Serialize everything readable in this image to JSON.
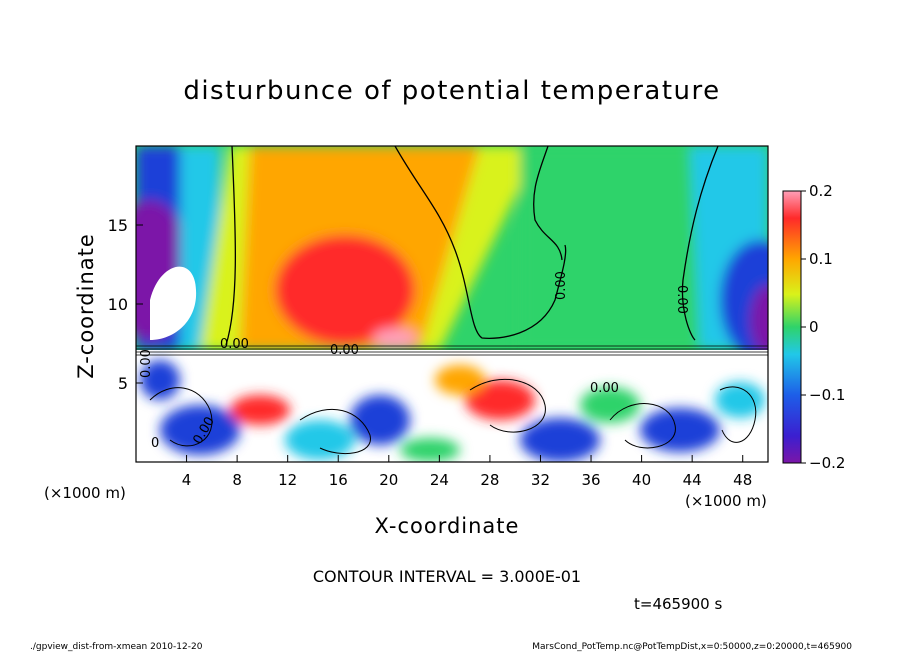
{
  "chart_data": {
    "type": "heatmap",
    "title": "disturbunce of potential temperature",
    "xlabel": "X-coordinate",
    "ylabel": "Z-coordinate",
    "x_unit_label": "(×1000 m)",
    "x_unit_label_right": "(×1000 m)",
    "xlim": [
      0,
      50
    ],
    "ylim": [
      0,
      20
    ],
    "x_ticks": [
      "4",
      "8",
      "12",
      "16",
      "20",
      "24",
      "28",
      "32",
      "36",
      "40",
      "44",
      "48"
    ],
    "x_tick_values": [
      4,
      8,
      12,
      16,
      20,
      24,
      28,
      32,
      36,
      40,
      44,
      48
    ],
    "y_ticks": [
      "5",
      "10",
      "15"
    ],
    "y_tick_values": [
      5,
      10,
      15
    ],
    "colorbar": {
      "range": [
        -0.2,
        0.2
      ],
      "ticks": [
        "0.2",
        "0.1",
        "0",
        "−0.1",
        "−0.2"
      ],
      "tick_values": [
        0.2,
        0.1,
        0,
        -0.1,
        -0.2
      ]
    },
    "contour_labels": [
      "0.00",
      "0.00",
      "0.00",
      "0.00",
      "0.00",
      "0.00",
      "0.00",
      "0"
    ],
    "contour_interval_text": "CONTOUR INTERVAL = 3.000E-01",
    "time_text": "t=465900 s",
    "colors": {
      "deep_negative": "#7b16a8",
      "negative": "#1d3fd8",
      "slightly_negative": "#21c8e8",
      "zero": "#2fd36a",
      "slightly_positive": "#d9f21a",
      "positive": "#ffa600",
      "strong_positive": "#ff2a2a",
      "max_positive": "#ff9fb8"
    }
  },
  "footer": {
    "left": "./gpview_dist-from-xmean  2010-12-20",
    "right": "MarsCond_PotTemp.nc@PotTempDist,x=0:50000,z=0:20000,t=465900"
  }
}
